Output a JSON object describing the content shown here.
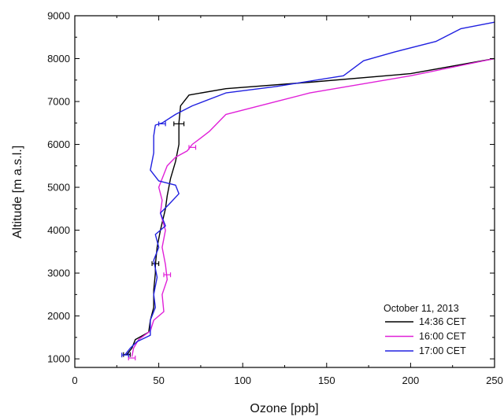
{
  "chart_data": {
    "type": "line",
    "title": "",
    "xlabel": "Ozone [ppb]",
    "ylabel": "Altitude [m a.s.l.]",
    "xlim": [
      0,
      250
    ],
    "ylim": [
      800,
      9000
    ],
    "xticks": [
      0,
      50,
      100,
      150,
      200,
      250
    ],
    "yticks": [
      1000,
      2000,
      3000,
      4000,
      5000,
      6000,
      7000,
      8000,
      9000
    ],
    "grid": false,
    "legend": {
      "title": "October 11, 2013",
      "placement": "bottom-right"
    },
    "series": [
      {
        "name": "14:36 CET",
        "color": "#000000",
        "points": [
          [
            31,
            1100
          ],
          [
            34,
            1250
          ],
          [
            36,
            1450
          ],
          [
            44,
            1620
          ],
          [
            45,
            1900
          ],
          [
            47,
            2200
          ],
          [
            47,
            2600
          ],
          [
            48,
            3000
          ],
          [
            48,
            3200
          ],
          [
            49,
            3600
          ],
          [
            51,
            4000
          ],
          [
            54,
            4500
          ],
          [
            55,
            4800
          ],
          [
            57,
            5200
          ],
          [
            60,
            5600
          ],
          [
            62,
            6000
          ],
          [
            62,
            6500
          ],
          [
            63,
            6900
          ],
          [
            68,
            7150
          ],
          [
            90,
            7300
          ],
          [
            140,
            7450
          ],
          [
            200,
            7650
          ],
          [
            250,
            8000
          ]
        ],
        "error_bars": [
          {
            "y": 1100,
            "xerr": 2
          },
          {
            "y": 3220,
            "xerr": 2
          },
          {
            "y": 6480,
            "xerr": 3
          }
        ]
      },
      {
        "name": "16:00 CET",
        "color": "#e020d8",
        "points": [
          [
            34,
            1050
          ],
          [
            35,
            1250
          ],
          [
            38,
            1450
          ],
          [
            45,
            1650
          ],
          [
            47,
            1900
          ],
          [
            53,
            2100
          ],
          [
            52,
            2500
          ],
          [
            55,
            2850
          ],
          [
            54,
            3200
          ],
          [
            52,
            3600
          ],
          [
            54,
            4000
          ],
          [
            51,
            4400
          ],
          [
            52,
            4700
          ],
          [
            50,
            5000
          ],
          [
            53,
            5300
          ],
          [
            55,
            5500
          ],
          [
            60,
            5700
          ],
          [
            67,
            5850
          ],
          [
            70,
            6000
          ],
          [
            75,
            6150
          ],
          [
            80,
            6300
          ],
          [
            90,
            6700
          ],
          [
            140,
            7200
          ],
          [
            200,
            7600
          ],
          [
            250,
            8000
          ]
        ],
        "error_bars": [
          {
            "y": 1020,
            "xerr": 2
          },
          {
            "y": 2960,
            "xerr": 2
          },
          {
            "y": 5930,
            "xerr": 2
          }
        ]
      },
      {
        "name": "17:00 CET",
        "color": "#2020e0",
        "points": [
          [
            30,
            1100
          ],
          [
            33,
            1250
          ],
          [
            37,
            1400
          ],
          [
            45,
            1550
          ],
          [
            45,
            1900
          ],
          [
            48,
            2200
          ],
          [
            47,
            2500
          ],
          [
            49,
            2900
          ],
          [
            47,
            3300
          ],
          [
            50,
            3600
          ],
          [
            48,
            3900
          ],
          [
            54,
            4100
          ],
          [
            51,
            4400
          ],
          [
            56,
            4600
          ],
          [
            62,
            4850
          ],
          [
            60,
            5050
          ],
          [
            50,
            5150
          ],
          [
            45,
            5400
          ],
          [
            47,
            5800
          ],
          [
            47,
            6200
          ],
          [
            48,
            6450
          ],
          [
            52,
            6500
          ],
          [
            60,
            6700
          ],
          [
            70,
            6900
          ],
          [
            90,
            7200
          ],
          [
            120,
            7350
          ],
          [
            160,
            7600
          ],
          [
            172,
            7950
          ],
          [
            190,
            8150
          ],
          [
            215,
            8400
          ],
          [
            230,
            8700
          ],
          [
            250,
            8850
          ]
        ],
        "error_bars": [
          {
            "y": 1090,
            "xerr": 2
          },
          {
            "y": 6480,
            "xerr": 2
          }
        ]
      }
    ]
  }
}
